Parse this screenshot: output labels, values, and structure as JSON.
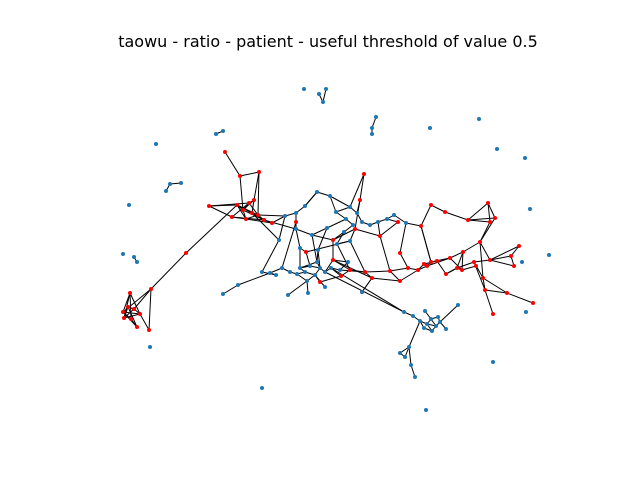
{
  "figure": {
    "title": "taowu - ratio - patient - useful threshold of value 0.5"
  },
  "colors": {
    "normal_node": "#1f77b4",
    "flagged_node": "#ff0000",
    "edge": "#000000",
    "background": "#ffffff"
  }
}
